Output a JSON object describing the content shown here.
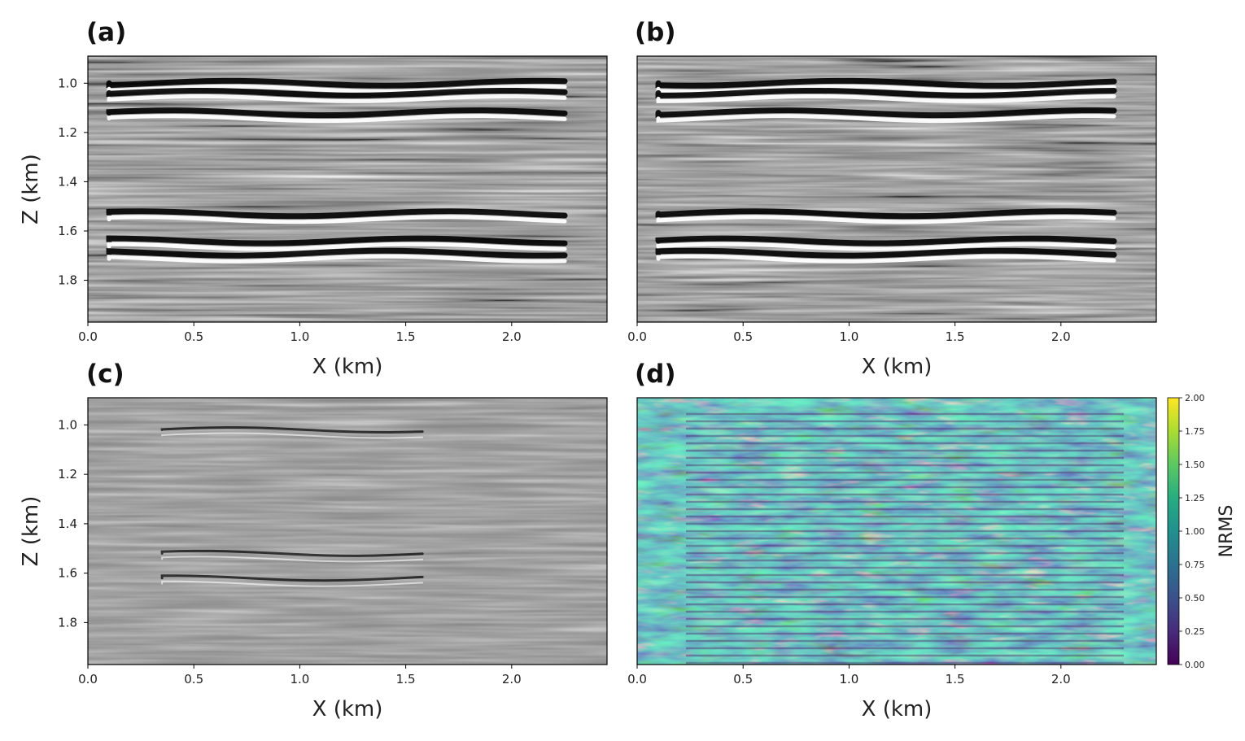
{
  "chart_data": [
    {
      "type": "heatmap",
      "panel": "(a)",
      "colormap": "gray",
      "xlabel": "X (km)",
      "ylabel": "Z (km)",
      "xlim": [
        0.0,
        2.45
      ],
      "ylim": [
        1.97,
        0.89
      ],
      "xticks": [
        "0.0",
        "0.5",
        "1.0",
        "1.5",
        "2.0"
      ],
      "yticks": [
        "1.0",
        "1.2",
        "1.4",
        "1.6",
        "1.8"
      ],
      "grid": false,
      "strong_reflectors_z": [
        1.0,
        1.04,
        1.12,
        1.53,
        1.64,
        1.69
      ]
    },
    {
      "type": "heatmap",
      "panel": "(b)",
      "colormap": "gray",
      "xlabel": "X (km)",
      "ylabel": "",
      "xlim": [
        0.0,
        2.45
      ],
      "ylim": [
        1.97,
        0.89
      ],
      "xticks": [
        "0.0",
        "0.5",
        "1.0",
        "1.5",
        "2.0"
      ],
      "grid": false,
      "strong_reflectors_z": [
        1.0,
        1.04,
        1.12,
        1.53,
        1.64,
        1.69
      ]
    },
    {
      "type": "heatmap",
      "panel": "(c)",
      "colormap": "gray",
      "xlabel": "X (km)",
      "ylabel": "Z (km)",
      "xlim": [
        0.0,
        2.45
      ],
      "ylim": [
        1.97,
        0.89
      ],
      "xticks": [
        "0.0",
        "0.5",
        "1.0",
        "1.5",
        "2.0"
      ],
      "yticks": [
        "1.0",
        "1.2",
        "1.4",
        "1.6",
        "1.8"
      ],
      "grid": false,
      "strong_reflectors_z": [
        1.02,
        1.52,
        1.62
      ]
    },
    {
      "type": "heatmap",
      "panel": "(d)",
      "colormap": "viridis",
      "xlabel": "X (km)",
      "ylabel": "",
      "xlim": [
        0.0,
        2.45
      ],
      "ylim": [
        1.97,
        0.89
      ],
      "xticks": [
        "0.0",
        "0.5",
        "1.0",
        "1.5",
        "2.0"
      ],
      "grid": false,
      "colorbar": {
        "label": "NRMS",
        "range": [
          0.0,
          2.0
        ],
        "ticks": [
          "0.00",
          "0.25",
          "0.50",
          "0.75",
          "1.00",
          "1.25",
          "1.50",
          "1.75",
          "2.00"
        ]
      }
    }
  ],
  "colors": {
    "viridis": [
      "#440154",
      "#472c7a",
      "#3b518b",
      "#2c718e",
      "#21908d",
      "#27ad81",
      "#5cc863",
      "#aadc32",
      "#fde725"
    ]
  }
}
